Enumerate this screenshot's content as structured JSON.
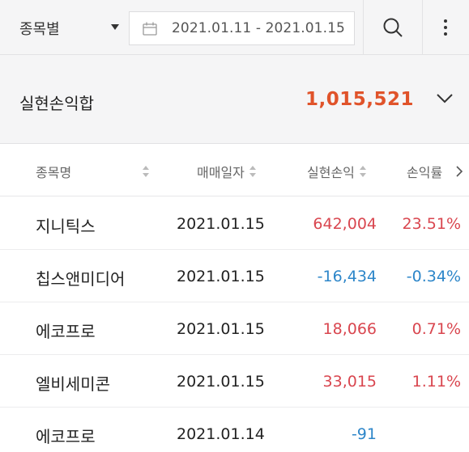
{
  "filter": {
    "group_label": "종목별",
    "date_range": "2021.01.11 - 2021.01.15"
  },
  "icons": {
    "calendar": "calendar-icon",
    "search": "search-icon",
    "more": "more-vertical-icon",
    "expand": "chevron-down-icon",
    "sort": "sort-icon",
    "next": "chevron-right-icon"
  },
  "summary": {
    "title": "실현손익합",
    "total": "1,015,521"
  },
  "table": {
    "headers": {
      "name": "종목명",
      "date": "매매일자",
      "pnl": "실현손익",
      "rate": "손익률"
    },
    "rows": [
      {
        "name": "지니틱스",
        "date": "2021.01.15",
        "pnl": "642,004",
        "rate": "23.51%",
        "sign": "positive"
      },
      {
        "name": "칩스앤미디어",
        "date": "2021.01.15",
        "pnl": "-16,434",
        "rate": "-0.34%",
        "sign": "negative"
      },
      {
        "name": "에코프로",
        "date": "2021.01.15",
        "pnl": "18,066",
        "rate": "0.71%",
        "sign": "positive"
      },
      {
        "name": "엘비세미콘",
        "date": "2021.01.15",
        "pnl": "33,015",
        "rate": "1.11%",
        "sign": "positive"
      },
      {
        "name": "에코프로",
        "date": "2021.01.14",
        "pnl": "-91",
        "rate": "",
        "sign": "negative"
      }
    ]
  },
  "colors": {
    "total": "#e0532a",
    "positive": "#d9464f",
    "negative": "#2d86c9"
  }
}
